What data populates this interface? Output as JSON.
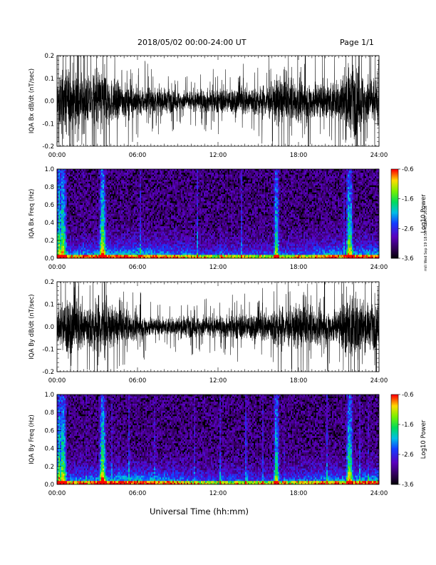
{
  "header": {
    "title": "2018/05/02  00:00-24:00 UT",
    "page": "Page 1/1"
  },
  "x_axis_label": "Universal Time (hh:mm)",
  "stamp": "mili Wed Sep 19 18:50:45 GMT 2018",
  "chart_data": [
    {
      "type": "line",
      "ylabel": "IQA Bx dB/dt (nT/sec)",
      "xlim": [
        0,
        24
      ],
      "ylim": [
        -0.2,
        0.2
      ],
      "x_ticks": [
        "00:00",
        "06:00",
        "12:00",
        "18:00",
        "24:00"
      ],
      "y_ticks": [
        "-0.2",
        "-0.1",
        "0.0",
        "0.1",
        "0.2"
      ],
      "grid": false,
      "series_color": "#000000",
      "envelope": {
        "hours": [
          0,
          0.5,
          1,
          1.5,
          2,
          2.5,
          3,
          3.3,
          3.6,
          4,
          5,
          6,
          7,
          8,
          9,
          10,
          11,
          12,
          13,
          14,
          15,
          16,
          16.5,
          17,
          17.5,
          18,
          19,
          20,
          21,
          21.5,
          22,
          22.5,
          23,
          24
        ],
        "amplitude": [
          0.14,
          0.2,
          0.2,
          0.17,
          0.16,
          0.14,
          0.2,
          0.2,
          0.2,
          0.13,
          0.1,
          0.09,
          0.08,
          0.07,
          0.06,
          0.06,
          0.07,
          0.07,
          0.08,
          0.09,
          0.09,
          0.11,
          0.15,
          0.12,
          0.13,
          0.13,
          0.12,
          0.11,
          0.12,
          0.2,
          0.2,
          0.2,
          0.15,
          0.14
        ]
      }
    },
    {
      "type": "heatmap",
      "ylabel": "IQA Bx Freq (Hz)",
      "xlim": [
        0,
        24
      ],
      "ylim": [
        0,
        1.0
      ],
      "x_ticks": [
        "00:00",
        "06:00",
        "12:00",
        "18:00",
        "24:00"
      ],
      "y_ticks": [
        "0.0",
        "0.2",
        "0.4",
        "0.6",
        "0.8",
        "1.0"
      ],
      "colorbar": {
        "label": "Log10 Power",
        "ticks": [
          "-0.6",
          "-1.6",
          "-2.6",
          "-3.6"
        ],
        "range": [
          -3.6,
          -0.6
        ]
      }
    },
    {
      "type": "line",
      "ylabel": "IQA By dB/dt (nT/sec)",
      "xlim": [
        0,
        24
      ],
      "ylim": [
        -0.2,
        0.2
      ],
      "x_ticks": [
        "00:00",
        "06:00",
        "12:00",
        "18:00",
        "24:00"
      ],
      "y_ticks": [
        "-0.2",
        "-0.1",
        "0.0",
        "0.1",
        "0.2"
      ],
      "grid": false,
      "series_color": "#000000",
      "envelope": {
        "hours": [
          0,
          0.5,
          1,
          1.5,
          2,
          2.5,
          3,
          3.3,
          3.6,
          4,
          5,
          6,
          7,
          8,
          9,
          10,
          11,
          12,
          13,
          14,
          15,
          16,
          16.5,
          17,
          17.5,
          18,
          19,
          20,
          21,
          21.5,
          22,
          22.5,
          23,
          24
        ],
        "amplitude": [
          0.08,
          0.18,
          0.2,
          0.16,
          0.15,
          0.13,
          0.2,
          0.2,
          0.2,
          0.12,
          0.1,
          0.08,
          0.06,
          0.05,
          0.06,
          0.06,
          0.07,
          0.06,
          0.07,
          0.08,
          0.09,
          0.1,
          0.14,
          0.12,
          0.12,
          0.13,
          0.12,
          0.1,
          0.11,
          0.2,
          0.2,
          0.2,
          0.13,
          0.12
        ]
      }
    },
    {
      "type": "heatmap",
      "ylabel": "IQA By Freq (Hz)",
      "xlim": [
        0,
        24
      ],
      "ylim": [
        0,
        1.0
      ],
      "x_ticks": [
        "00:00",
        "06:00",
        "12:00",
        "18:00",
        "24:00"
      ],
      "y_ticks": [
        "0.0",
        "0.2",
        "0.4",
        "0.6",
        "0.8",
        "1.0"
      ],
      "colorbar": {
        "label": "Log10 Power",
        "ticks": [
          "-0.6",
          "-1.6",
          "-2.6",
          "-3.6"
        ],
        "range": [
          -3.6,
          -0.6
        ]
      }
    }
  ]
}
